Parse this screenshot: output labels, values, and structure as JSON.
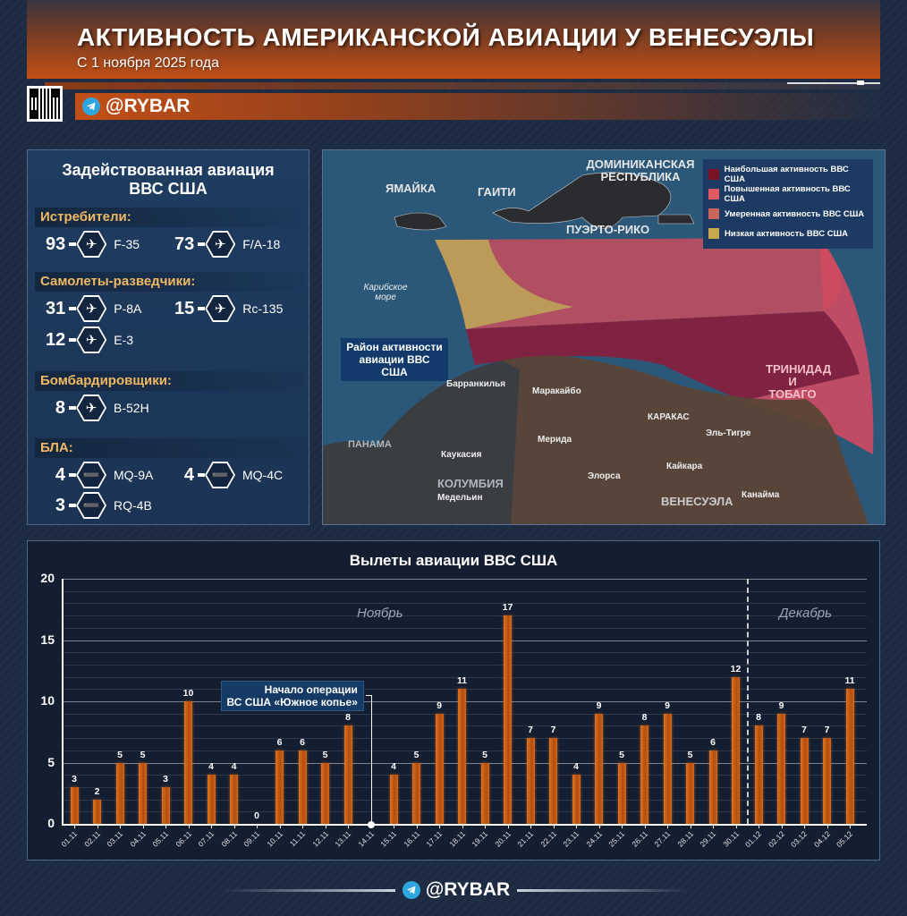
{
  "header": {
    "title": "АКТИВНОСТЬ АМЕРИКАНСКОЙ АВИАЦИИ У ВЕНЕСУЭЛЫ",
    "subtitle": "С 1 ноября 2025 года",
    "brand": "@RYBAR"
  },
  "aviation_panel": {
    "title_line1": "Задействованная авиация",
    "title_line2": "ВВС США",
    "categories": [
      {
        "label": "Истребители:",
        "items": [
          {
            "count": "93",
            "model": "F-35",
            "icon": "fighter-jet-icon"
          },
          {
            "count": "73",
            "model": "F/A-18",
            "icon": "fighter-jet-icon"
          }
        ]
      },
      {
        "label": "Самолеты-разведчики:",
        "items": [
          {
            "count": "31",
            "model": "P-8A",
            "icon": "airplane-icon"
          },
          {
            "count": "15",
            "model": "Rc-135",
            "icon": "airplane-icon"
          },
          {
            "count": "12",
            "model": "E-3",
            "icon": "airplane-icon"
          }
        ]
      },
      {
        "label": "Бомбардировщики:",
        "items": [
          {
            "count": "8",
            "model": "B-52H",
            "icon": "airplane-icon"
          }
        ]
      },
      {
        "label": "БЛА:",
        "items": [
          {
            "count": "4",
            "model": "MQ-9A",
            "icon": "drone-icon"
          },
          {
            "count": "4",
            "model": "MQ-4C",
            "icon": "drone-icon"
          },
          {
            "count": "3",
            "model": "RQ-4B",
            "icon": "drone-icon"
          }
        ]
      }
    ]
  },
  "map": {
    "legend": [
      {
        "label": "Наибольшая активность ВВС США",
        "color": "#7a1424"
      },
      {
        "label": "Повышенная активность ВВС США",
        "color": "#e05a64"
      },
      {
        "label": "Умеренная активность ВВС США",
        "color": "#c8665a"
      },
      {
        "label": "Низкая активность ВВС США",
        "color": "#c8a84c"
      }
    ],
    "countries": [
      "ЯМАЙКА",
      "ГАИТИ",
      "ДОМИНИКАНСКАЯ РЕСПУБЛИКА",
      "ПУЭРТО-РИКО",
      "ТРИНИДАД И ТОБАГО",
      "ПАНАМА",
      "КОЛУМБИЯ",
      "ВЕНЕСУЭЛА"
    ],
    "sea": "Карибское море",
    "callout": "Район активности авиации ВВС США",
    "cities": [
      "Барранкилья",
      "Маракайбо",
      "КАРАКАС",
      "Мерида",
      "Эль-Тигре",
      "Каукасия",
      "Кайкара",
      "Элорса",
      "Медельин",
      "Канайма"
    ]
  },
  "chart_data": {
    "type": "bar",
    "title": "Вылеты авиации ВВС США",
    "xlabel": "",
    "ylabel": "",
    "ylim": [
      0,
      20
    ],
    "yticks": [
      0,
      5,
      10,
      15,
      20
    ],
    "grid": true,
    "categories": [
      "01.11",
      "02.11",
      "03.11",
      "04.11",
      "05.11",
      "06.11",
      "07.11",
      "08.11",
      "09.11",
      "10.11",
      "11.11",
      "12.11",
      "13.11",
      "14.11",
      "15.11",
      "16.11",
      "17.11",
      "18.11",
      "19.11",
      "20.11",
      "21.11",
      "22.11",
      "23.11",
      "24.11",
      "25.11",
      "26.11",
      "27.11",
      "28.11",
      "29.11",
      "30.11",
      "01.12",
      "02.12",
      "03.12",
      "04.12",
      "05.12"
    ],
    "values": [
      3,
      2,
      5,
      5,
      3,
      10,
      4,
      4,
      0,
      6,
      6,
      5,
      8,
      null,
      4,
      5,
      9,
      11,
      5,
      17,
      7,
      7,
      4,
      9,
      5,
      8,
      9,
      5,
      6,
      12,
      8,
      9,
      7,
      7,
      11
    ],
    "month_labels": [
      "Ноябрь",
      "Декабрь"
    ],
    "annotations": [
      {
        "x": "14.11",
        "text_line1": "Начало операции",
        "text_line2": "ВС США «Южное копье»"
      }
    ],
    "separator_between": [
      "30.11",
      "01.12"
    ],
    "bar_color": "#d0631a"
  },
  "footer": {
    "brand": "@RYBAR"
  }
}
